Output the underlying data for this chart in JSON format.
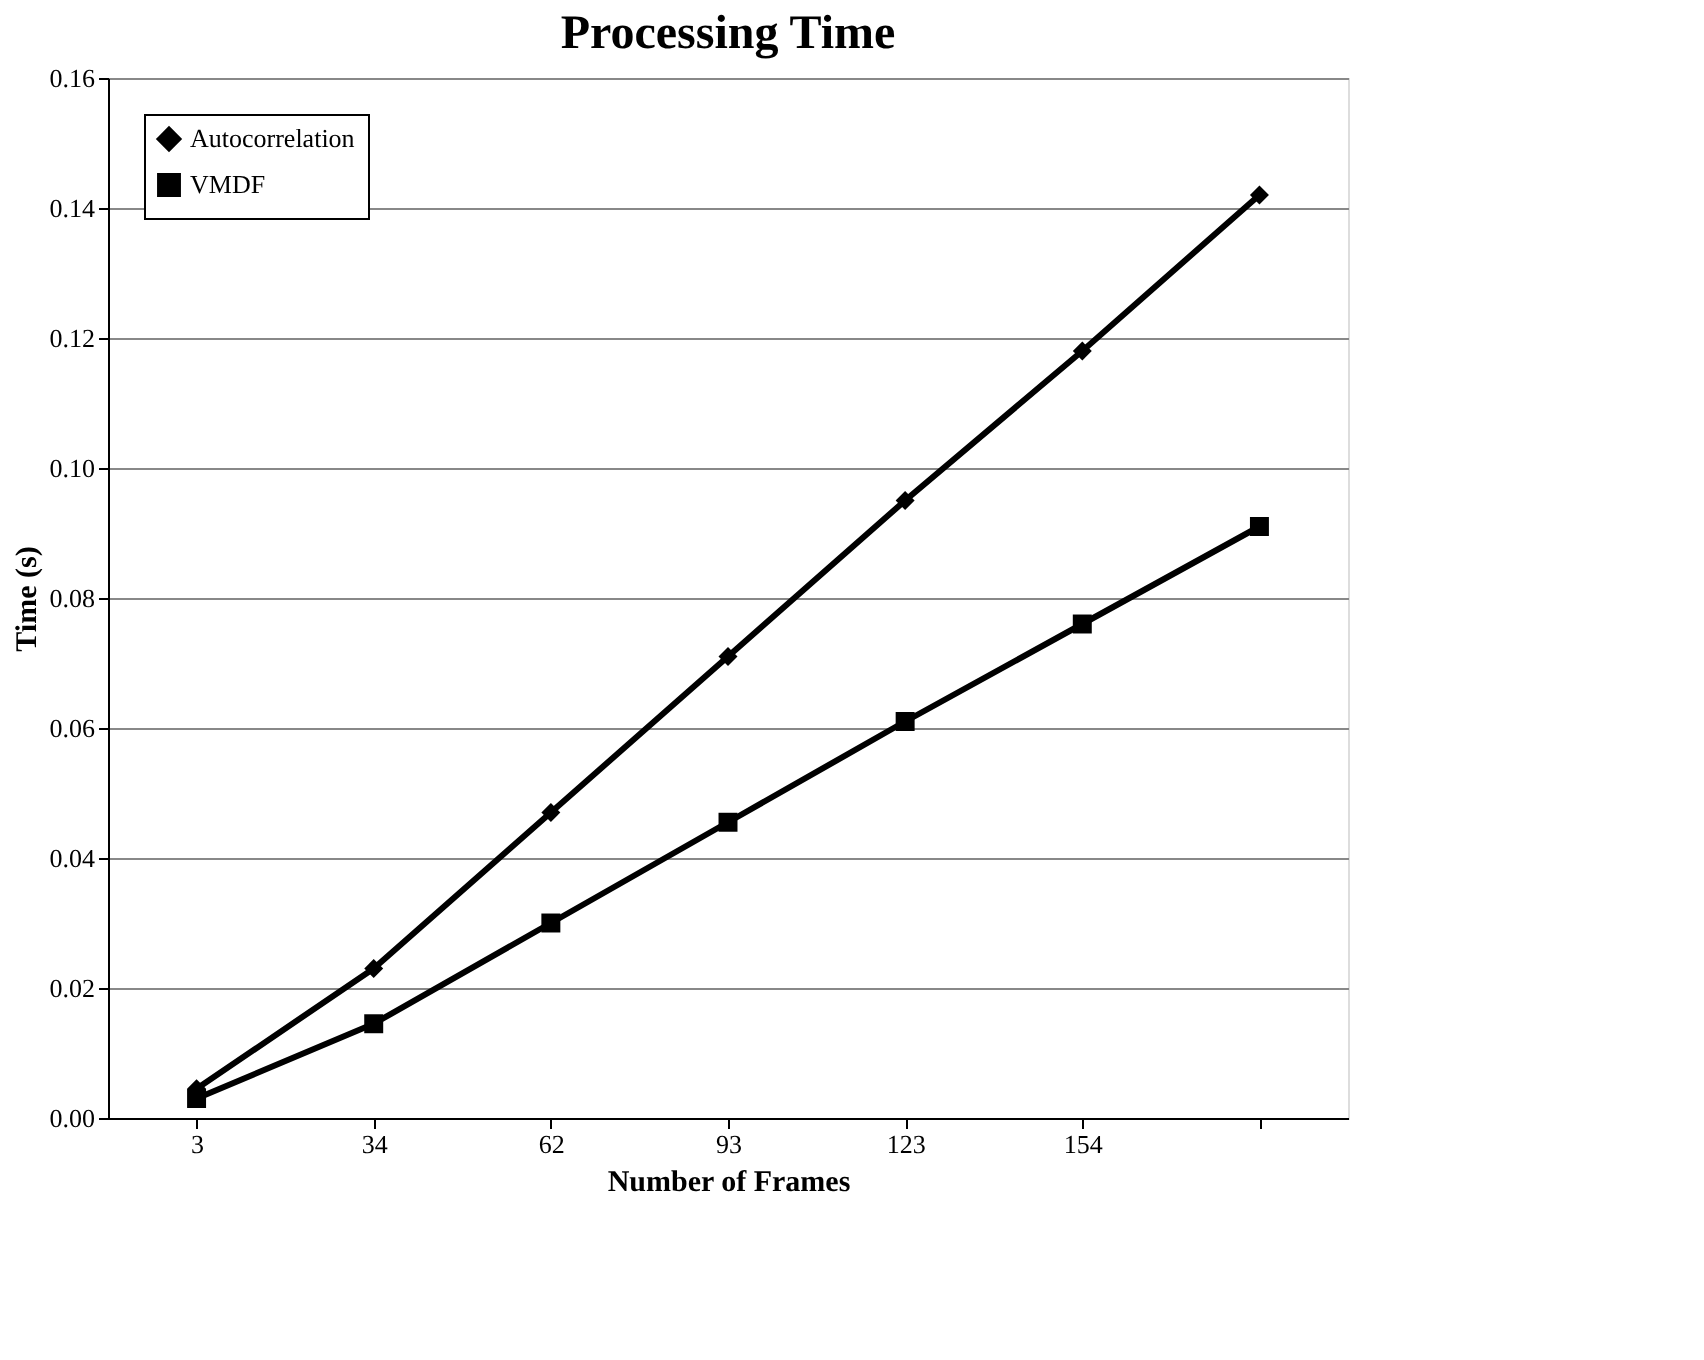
{
  "chart_data": {
    "type": "line",
    "title": "Processing Time",
    "xlabel": "Number of Frames",
    "ylabel": "Time (s)",
    "categories": [
      "3",
      "34",
      "62",
      "93",
      "123",
      "154",
      null
    ],
    "series": [
      {
        "name": "Autocorrelation",
        "color": "#000000",
        "marker": "diamond",
        "values": [
          0.0045,
          0.023,
          0.047,
          0.071,
          0.095,
          0.118,
          0.142
        ]
      },
      {
        "name": "VMDF",
        "color": "#000000",
        "marker": "square",
        "values": [
          0.003,
          0.0145,
          0.03,
          0.0455,
          0.061,
          0.076,
          0.091
        ]
      }
    ],
    "ylim": [
      0,
      0.16
    ],
    "yticks": [
      {
        "value": 0,
        "label": "0.00"
      },
      {
        "value": 0.02,
        "label": "0.02"
      },
      {
        "value": 0.04,
        "label": "0.04"
      },
      {
        "value": 0.06,
        "label": "0.06"
      },
      {
        "value": 0.08,
        "label": "0.08"
      },
      {
        "value": 0.1,
        "label": "0.10"
      },
      {
        "value": 0.12,
        "label": "0.12"
      },
      {
        "value": 0.14,
        "label": "0.14"
      },
      {
        "value": 0.16,
        "label": "0.16"
      }
    ],
    "grid": "y",
    "legend": "top left",
    "line_style": "solid"
  }
}
